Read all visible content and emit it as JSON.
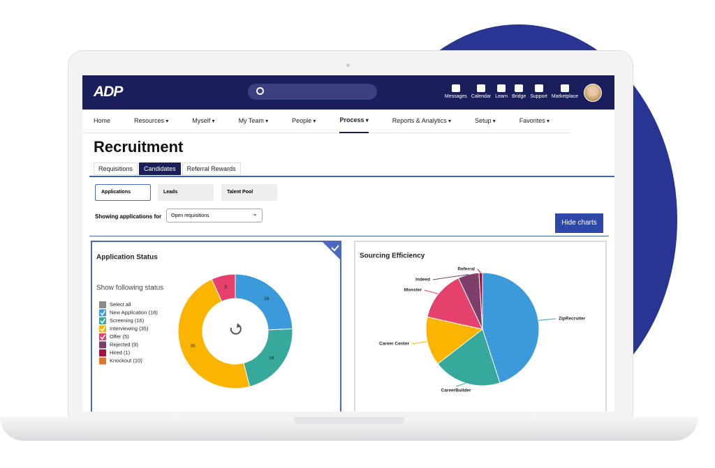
{
  "header": {
    "logo": "ADP",
    "icons": [
      "Messages",
      "Calendar",
      "Learn",
      "Bridge",
      "Support",
      "Marketplace"
    ]
  },
  "menu": {
    "items": [
      "Home",
      "Resources",
      "Myself",
      "My Team",
      "People",
      "Process",
      "Reports & Analytics",
      "Setup",
      "Favorites"
    ]
  },
  "page": {
    "title": "Recruitment",
    "tabs": [
      "Requisitions",
      "Candidates",
      "Referral Rewards"
    ],
    "subtabs": [
      "Applications",
      "Leads",
      "Talent Pool"
    ],
    "filter_label": "Showing applications for",
    "filter_value": "Open requisitions",
    "button": "Hide charts"
  },
  "chart_data": [
    {
      "type": "donut",
      "title": "Application Status",
      "subtitle": "Show following status",
      "legend": [
        {
          "label": "Select all",
          "color": "#8a8a8a",
          "checked": false
        },
        {
          "label": "New Application (18)",
          "color": "#3b9ad9",
          "checked": true
        },
        {
          "label": "Screening (16)",
          "color": "#36a89c",
          "checked": true
        },
        {
          "label": "Interviewing (35)",
          "color": "#fbb400",
          "checked": true
        },
        {
          "label": "Offer (5)",
          "color": "#e5416c",
          "checked": true
        },
        {
          "label": "Rejected (9)",
          "color": "#7d3f6a",
          "checked": false
        },
        {
          "label": "Hired (1)",
          "color": "#a5123f",
          "checked": false
        },
        {
          "label": "Knockout (10)",
          "color": "#e0762b",
          "checked": false
        }
      ],
      "values": [
        18,
        16,
        35,
        5
      ],
      "colors": [
        "#3b9ad9",
        "#36a89c",
        "#fbb400",
        "#e5416c"
      ]
    },
    {
      "type": "pie",
      "title": "Sourcing Efficiency",
      "categories": [
        "ZipRecruiter",
        "CareerBuilder",
        "Career Center",
        "Monster",
        "Indeed",
        "Referral"
      ],
      "values": [
        45,
        19.5,
        14,
        14.5,
        6,
        1
      ],
      "colors": [
        "#3b9ad9",
        "#36a89c",
        "#fbb400",
        "#e5416c",
        "#7d3f6a",
        "#a5123f"
      ]
    }
  ]
}
